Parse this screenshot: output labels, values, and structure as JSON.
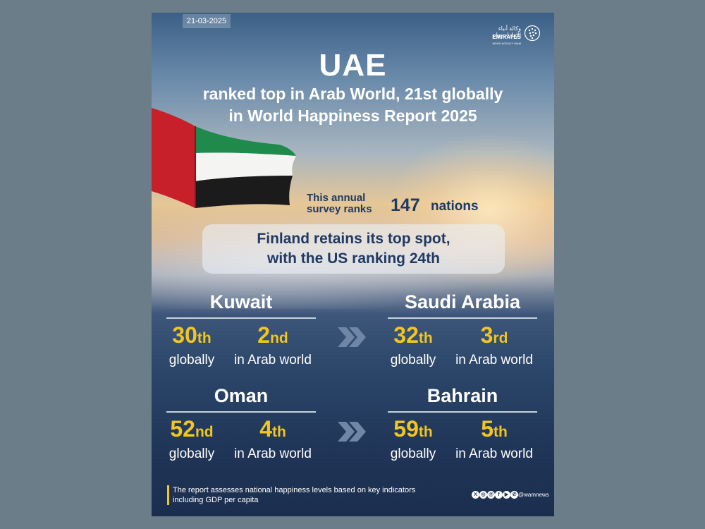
{
  "date": "21-03-2025",
  "logo": {
    "arabic_text": "وكالة أنباء الإمارات وام",
    "english_text": "EMIRATES",
    "sub_text": "NEWS AGENCY WAM"
  },
  "headline": {
    "title": "UAE",
    "subtitle_line1": "ranked top in Arab World, 21st globally",
    "subtitle_line2": "in World Happiness Report 2025"
  },
  "survey": {
    "text_line1": "This annual",
    "text_line2": "survey ranks",
    "number": "147",
    "unit": "nations"
  },
  "highlight": {
    "line1": "Finland retains its top spot,",
    "line2": "with the US ranking 24th"
  },
  "countries": [
    {
      "name": "Kuwait",
      "global_num": "30",
      "global_sfx": "th",
      "global_label": "globally",
      "arab_num": "2",
      "arab_sfx": "nd",
      "arab_label": "in Arab world"
    },
    {
      "name": "Saudi Arabia",
      "global_num": "32",
      "global_sfx": "th",
      "global_label": "globally",
      "arab_num": "3",
      "arab_sfx": "rd",
      "arab_label": "in Arab world"
    },
    {
      "name": "Oman",
      "global_num": "52",
      "global_sfx": "nd",
      "global_label": "globally",
      "arab_num": "4",
      "arab_sfx": "th",
      "arab_label": "in Arab world"
    },
    {
      "name": "Bahrain",
      "global_num": "59",
      "global_sfx": "th",
      "global_label": "globally",
      "arab_num": "5",
      "arab_sfx": "th",
      "arab_label": "in Arab world"
    }
  ],
  "footer": {
    "note_line1": "The report assesses national happiness levels based on key indicators",
    "note_line2": "including GDP per capita",
    "social_handle": "@wamnews",
    "social_icons": [
      "x-icon",
      "instagram-icon",
      "threads-icon",
      "facebook-icon",
      "youtube-icon",
      "whatsapp-icon"
    ]
  },
  "colors": {
    "accent": "#f2c521",
    "text_dark": "#1f3a63",
    "background_page": "#6b7d88",
    "flag_red": "#c8202a",
    "flag_green": "#1f8a4c",
    "flag_black": "#1b1b1b"
  }
}
